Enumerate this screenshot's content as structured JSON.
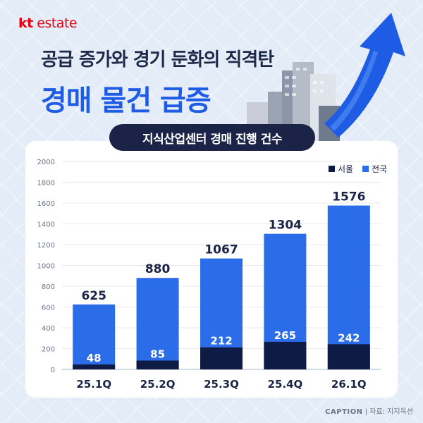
{
  "brand": {
    "kt": "kt",
    "estate": "estate"
  },
  "headline": {
    "subtitle": "공급 증가와 경기 둔화의 직격탄",
    "title": "경매 물건 급증"
  },
  "chart_data": {
    "type": "bar",
    "stacked": "overlay",
    "title": "지식산업센터 경매 진행 건수",
    "xlabel": "",
    "ylabel": "",
    "categories": [
      "25.1Q",
      "25.2Q",
      "25.3Q",
      "25.4Q",
      "26.1Q"
    ],
    "series": [
      {
        "name": "서울",
        "color": "#0d1b45",
        "values": [
          48,
          85,
          212,
          265,
          242
        ]
      },
      {
        "name": "전국",
        "color": "#2b6de8",
        "values": [
          625,
          880,
          1067,
          1304,
          1576
        ]
      }
    ],
    "ylim": [
      0,
      2000
    ],
    "yticks": [
      "0",
      "200",
      "400",
      "600",
      "800",
      "1000",
      "1200",
      "1400",
      "1600",
      "1800",
      "2000"
    ],
    "grid": true,
    "legend": "top-right"
  },
  "footer": {
    "brand": "CAPTION",
    "separator": "|",
    "source": "자료: 지지옥션"
  },
  "colors": {
    "accent": "#1f5ce6",
    "navy": "#1b2447",
    "brand_red": "#e60012",
    "background": "#e3ecf7"
  }
}
